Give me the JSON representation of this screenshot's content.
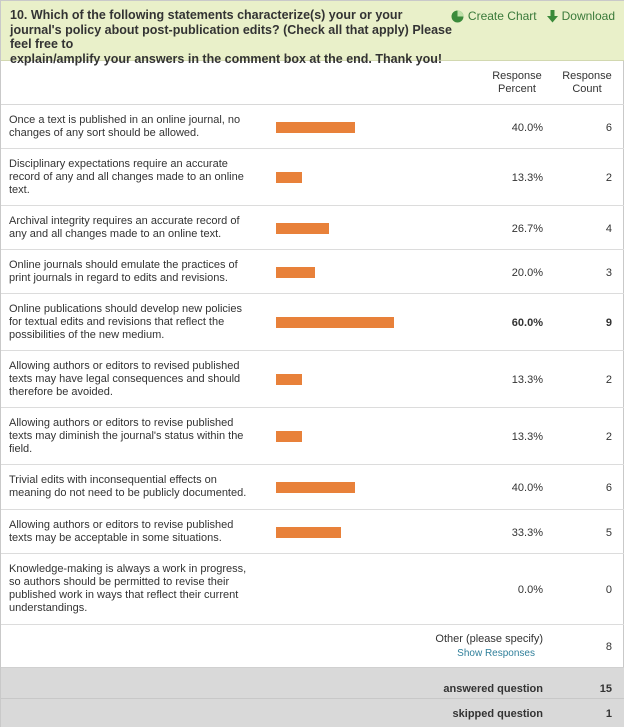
{
  "question": {
    "line1": "10. Which of the following statements characterize(s) your or your",
    "line2": "journal's policy about post-publication edits? (Check all that apply) Please feel free to",
    "line3": "explain/amplify your answers in the comment box at the end. Thank you!"
  },
  "tools": {
    "create_chart": "Create Chart",
    "download": "Download"
  },
  "columns": {
    "percent_line1": "Response",
    "percent_line2": "Percent",
    "count_line1": "Response",
    "count_line2": "Count"
  },
  "bar_color": "#e8813a",
  "header_bg": "#e9f0c9",
  "rows": [
    {
      "label": "Once a text is published in an online journal, no changes of any sort should be allowed.",
      "percent": "40.0%",
      "value": 40.0,
      "count": "6"
    },
    {
      "label": "Disciplinary expectations require an accurate record of any and all changes made to an online text.",
      "percent": "13.3%",
      "value": 13.3,
      "count": "2"
    },
    {
      "label": "Archival integrity requires an accurate record of any and all changes made to an online text.",
      "percent": "26.7%",
      "value": 26.7,
      "count": "4"
    },
    {
      "label": "Online journals should emulate the practices of print journals in regard to edits and revisions.",
      "percent": "20.0%",
      "value": 20.0,
      "count": "3"
    },
    {
      "label": "Online publications should develop new policies for textual edits and revisions that reflect the possibilities of the new medium.",
      "percent": "60.0%",
      "value": 60.0,
      "count": "9"
    },
    {
      "label": "Allowing authors or editors to revised published texts may have legal consequences and should therefore be avoided.",
      "percent": "13.3%",
      "value": 13.3,
      "count": "2"
    },
    {
      "label": "Allowing authors or editors to revise published texts may diminish the journal's status within the field.",
      "percent": "13.3%",
      "value": 13.3,
      "count": "2"
    },
    {
      "label": "Trivial edits with inconsequential effects on meaning do not need to be publicly documented.",
      "percent": "40.0%",
      "value": 40.0,
      "count": "6"
    },
    {
      "label": "Allowing authors or editors to revise published texts may be acceptable in some situations.",
      "percent": "33.3%",
      "value": 33.3,
      "count": "5"
    },
    {
      "label": "Knowledge-making is always a work in progress, so authors should be permitted to revise their published work in ways that reflect their current understandings.",
      "percent": "0.0%",
      "value": 0.0,
      "count": "0"
    }
  ],
  "other": {
    "label": "Other (please specify)",
    "show_responses": "Show Responses",
    "count": "8"
  },
  "summary": {
    "answered_label": "answered question",
    "answered_value": "15",
    "skipped_label": "skipped question",
    "skipped_value": "1"
  }
}
